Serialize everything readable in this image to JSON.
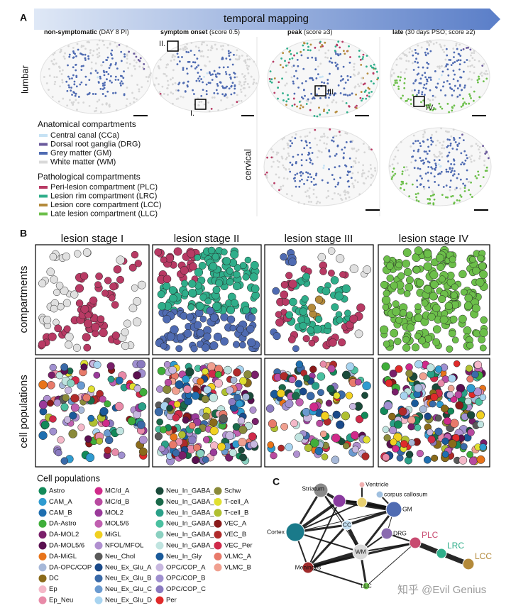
{
  "panel_a": {
    "letter": "A",
    "arrow_label": "temporal mapping",
    "columns": [
      {
        "bold": "non-symptomatic",
        "rest": "(DAY 8 PI)"
      },
      {
        "bold": "symptom onset",
        "rest": "(score 0.5)"
      },
      {
        "bold": "peak",
        "rest": "(score ≥3)"
      },
      {
        "bold": "late",
        "rest": "(30 days PSO; score ≥2)"
      }
    ],
    "rows": [
      "lumbar",
      "cervical"
    ],
    "region_labels": [
      "II.",
      "I.",
      "III.",
      "IV."
    ],
    "anatomical_legend": {
      "title": "Anatomical compartments",
      "items": [
        {
          "label": "Central canal (CCa)",
          "color": "#c6e2f4"
        },
        {
          "label": "Dorsal root ganglia (DRG)",
          "color": "#6a5a9c"
        },
        {
          "label": "Grey matter (GM)",
          "color": "#4f6bb2"
        },
        {
          "label": "White matter (WM)",
          "color": "#d9d9d9"
        }
      ]
    },
    "pathological_legend": {
      "title": "Pathological compartments",
      "items": [
        {
          "label": "Peri-lesion compartment (PLC)",
          "color": "#b83a64"
        },
        {
          "label": "Lesion rim compartment (LRC)",
          "color": "#2fae8a"
        },
        {
          "label": "Lesion core compartment (LCC)",
          "color": "#b48a3a"
        },
        {
          "label": "Late lesion compartment (LLC)",
          "color": "#6cbf4a"
        }
      ]
    }
  },
  "panel_b": {
    "letter": "B",
    "stages": [
      "lesion stage I",
      "lesion stage II",
      "lesion stage III",
      "lesion stage IV"
    ],
    "rows": [
      "compartments",
      "cell populations"
    ],
    "cell_legend": {
      "title": "Cell populations",
      "items": [
        {
          "label": "Astro",
          "color": "#138a5a"
        },
        {
          "label": "CAM_A",
          "color": "#2f9bd0"
        },
        {
          "label": "CAM_B",
          "color": "#1f6fb0"
        },
        {
          "label": "DA-Astro",
          "color": "#3fae3a"
        },
        {
          "label": "DA-MOL2",
          "color": "#7a1f6a"
        },
        {
          "label": "DA-MOL5/6",
          "color": "#5a1050"
        },
        {
          "label": "DA-MiGL",
          "color": "#e8741a"
        },
        {
          "label": "DA-OPC/COP",
          "color": "#a6b8d8"
        },
        {
          "label": "DC",
          "color": "#8a6a1a"
        },
        {
          "label": "Ep",
          "color": "#f4b8c8"
        },
        {
          "label": "Ep_Neu",
          "color": "#e88aa8"
        },
        {
          "label": "MC/d_A",
          "color": "#d02a8a"
        },
        {
          "label": "MC/d_B",
          "color": "#b84aa0"
        },
        {
          "label": "MOL2",
          "color": "#9a3a9a"
        },
        {
          "label": "MOL5/6",
          "color": "#c060b0"
        },
        {
          "label": "MiGL",
          "color": "#f0d020"
        },
        {
          "label": "NFOL/MFOL",
          "color": "#b090d0"
        },
        {
          "label": "Neu_Chol",
          "color": "#5a5a5a"
        },
        {
          "label": "Neu_Ex_Glu_A",
          "color": "#1a4a8a"
        },
        {
          "label": "Neu_Ex_Glu_B",
          "color": "#3a6aa8"
        },
        {
          "label": "Neu_Ex_Glu_C",
          "color": "#6a9ad0"
        },
        {
          "label": "Neu_Ex_Glu_D",
          "color": "#a8d4f0"
        },
        {
          "label": "Neu_In_GABA_A",
          "color": "#1a4a3a"
        },
        {
          "label": "Neu_In_GABA_B",
          "color": "#1a6a4a"
        },
        {
          "label": "Neu_In_GABA_C",
          "color": "#2aa088"
        },
        {
          "label": "Neu_In_GABA_D",
          "color": "#4ac0a0"
        },
        {
          "label": "Neu_In_GABA_E",
          "color": "#8ad0c0"
        },
        {
          "label": "Neu_In_GABA_F",
          "color": "#c0e4e0"
        },
        {
          "label": "Neu_In_Gly",
          "color": "#1a5a9a"
        },
        {
          "label": "OPC/COP_A",
          "color": "#c8b8e0"
        },
        {
          "label": "OPC/COP_B",
          "color": "#a090d0"
        },
        {
          "label": "OPC/COP_C",
          "color": "#8a7ac0"
        },
        {
          "label": "Per",
          "color": "#e02a2a"
        },
        {
          "label": "Schw",
          "color": "#8a8a3a"
        },
        {
          "label": "T-cell_A",
          "color": "#e0e030"
        },
        {
          "label": "T-cell_B",
          "color": "#b0c030"
        },
        {
          "label": "VEC_A",
          "color": "#8a1a1a"
        },
        {
          "label": "VEC_B",
          "color": "#b02a2a"
        },
        {
          "label": "VEC_Per",
          "color": "#d02a4a"
        },
        {
          "label": "VLMC_A",
          "color": "#e87a6a"
        },
        {
          "label": "VLMC_B",
          "color": "#f0a090"
        }
      ]
    }
  },
  "panel_c": {
    "letter": "C",
    "nodes": [
      {
        "label": "Striatum",
        "color": "#8a8a8a"
      },
      {
        "label": "Ventricle",
        "color": "#f0b0b0"
      },
      {
        "label": "corpus callosum",
        "color": "#a0c0e0"
      },
      {
        "label": "GM",
        "color": "#4f6bb2"
      },
      {
        "label": "Cortex",
        "color": "#1a7a8a"
      },
      {
        "label": "CC",
        "color": "#c6e2f4"
      },
      {
        "label": "DRG",
        "color": "#8a6ab0"
      },
      {
        "label": "WM",
        "color": "#d9d9d9"
      },
      {
        "label": "PLC",
        "color": "#c84a70"
      },
      {
        "label": "LRC",
        "color": "#2fae8a"
      },
      {
        "label": "LCC",
        "color": "#b48a3a"
      },
      {
        "label": "Meninges",
        "color": "#a02a2a"
      },
      {
        "label": "LLC",
        "color": "#6cbf4a"
      }
    ]
  },
  "watermark": "知乎 @Evil Genius"
}
